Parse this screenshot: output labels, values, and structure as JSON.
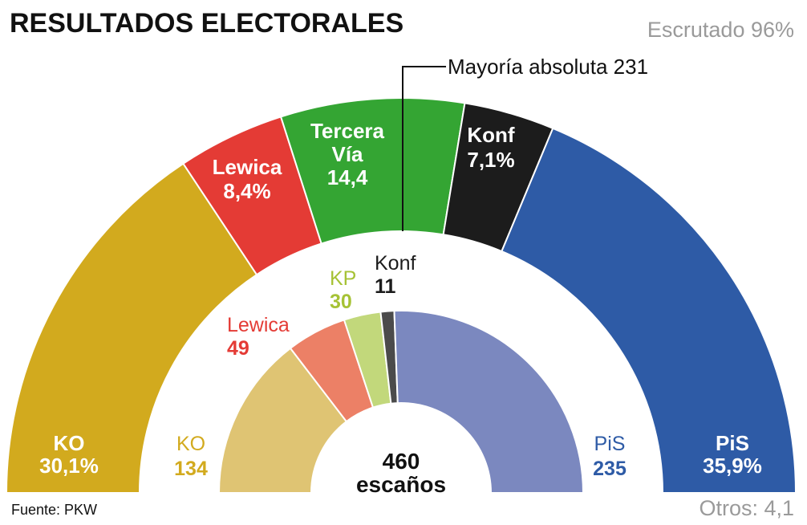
{
  "header": {
    "title": "RESULTADOS ELECTORALES",
    "scrutiny": "Escrutado 96%"
  },
  "majority_note": "Mayoría absoluta 231",
  "source": "Fuente: PKW",
  "others": "Otros: 4,1",
  "center": {
    "seats_total": "460",
    "seats_word": "escaños"
  },
  "chart_data": [
    {
      "type": "pie",
      "subtype": "semicircle-outer-ring",
      "measure": "vote share (%)",
      "order": "left-to-right",
      "categories": [
        "KO",
        "Lewica",
        "Tercera Vía",
        "Konf",
        "PiS"
      ],
      "values": [
        30.1,
        8.4,
        14.4,
        7.1,
        35.9
      ],
      "value_labels": [
        "30,1%",
        "8,4%",
        "14,4",
        "7,1%",
        "35,9%"
      ],
      "others_value": 4.1,
      "colors": [
        "#d2aa1e",
        "#e43b35",
        "#34a533",
        "#1c1c1c",
        "#2e5ba6"
      ]
    },
    {
      "type": "pie",
      "subtype": "semicircle-inner-ring",
      "measure": "seats",
      "order": "left-to-right",
      "categories": [
        "KO",
        "Lewica",
        "KP",
        "Konf",
        "PiS"
      ],
      "values": [
        134,
        49,
        30,
        11,
        235
      ],
      "total": 460,
      "majority": 231,
      "colors": [
        "#dfc473",
        "#ec8066",
        "#c2d87b",
        "#4b4b4b",
        "#7b88bf"
      ],
      "label_colors": [
        "#d2aa1e",
        "#e43b35",
        "#a6c235",
        "#1c1c1c",
        "#2e5ba6"
      ]
    }
  ]
}
